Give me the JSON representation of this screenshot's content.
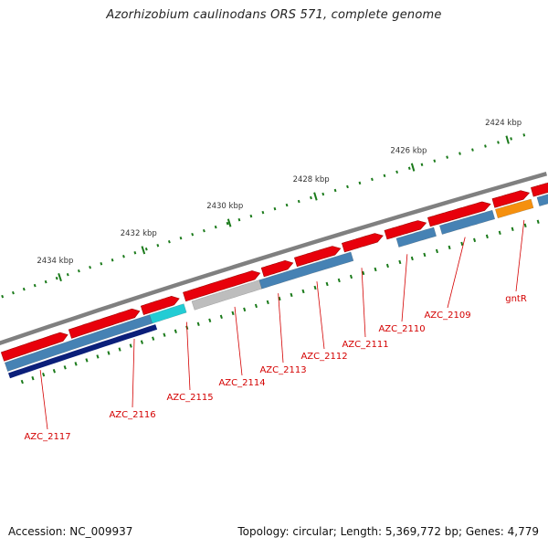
{
  "title": "Azorhizobium caulinodans ORS 571, complete genome",
  "footer": {
    "accession": "Accession: NC_009937",
    "topology": "Topology: circular; Length: 5,369,772 bp; Genes: 4,779"
  },
  "ruler_labels": [
    "2424 kbp",
    "2426 kbp",
    "2428 kbp",
    "2430 kbp",
    "2432 kbp",
    "2434 kbp"
  ],
  "gene_labels": [
    "gntR",
    "AZC_2109",
    "AZC_2110",
    "AZC_2111",
    "AZC_2112",
    "AZC_2113",
    "AZC_2114",
    "AZC_2115",
    "AZC_2116",
    "AZC_2117"
  ],
  "colors": {
    "backbone": "#808080",
    "forward_cds": "#e8000b",
    "reverse_cds": "#4682b4",
    "dark_reverse": "#0b1f7a",
    "cyan_feature": "#22ccd4",
    "gray_feature": "#bdbdbd",
    "orange_feature": "#f5900f",
    "tick": "#1a7a1a",
    "label": "#d40000"
  }
}
